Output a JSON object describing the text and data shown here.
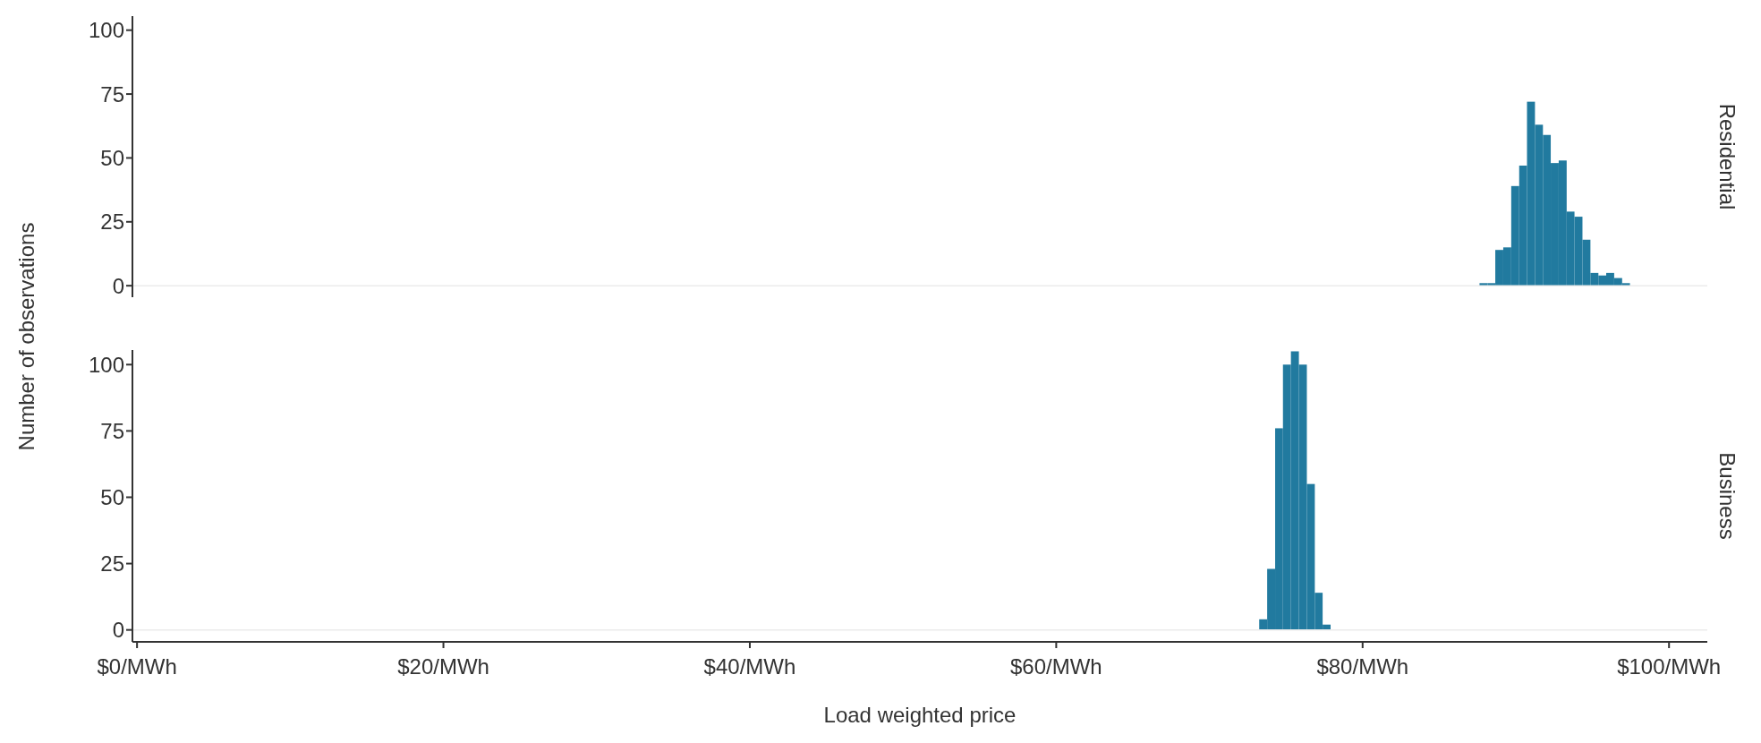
{
  "chart_data": [
    {
      "type": "histogram",
      "title": "Residential",
      "ylabel": "Number of observations",
      "color": "#217a9f",
      "bins": [
        87.63,
        88.15,
        88.66,
        89.18,
        89.7,
        90.22,
        90.73,
        91.25,
        91.77,
        92.28,
        92.8,
        93.32,
        93.83,
        94.35,
        94.87,
        95.39,
        95.9,
        96.42,
        96.94,
        97.45
      ],
      "values": [
        1,
        1,
        14,
        15,
        39,
        47,
        72,
        63,
        59,
        48,
        49,
        29,
        27,
        18,
        5,
        4,
        5,
        3,
        1
      ],
      "xlim": [
        -0.3,
        102.5
      ],
      "ylim": [
        -4.5,
        105.5
      ],
      "yticks": [
        0,
        25,
        50,
        75,
        100
      ],
      "tick_labels": "y",
      "grid": false,
      "ref_lines": [
        {
          "axis": "y",
          "value": 0,
          "color": "#ebebeb"
        }
      ]
    },
    {
      "type": "histogram",
      "title": "Business",
      "xlabel": "Load weighted price",
      "color": "#217a9f",
      "bins": [
        73.25,
        73.77,
        74.29,
        74.8,
        75.32,
        75.84,
        76.36,
        76.88,
        77.39,
        77.91
      ],
      "values": [
        4,
        23,
        76,
        100,
        105,
        100,
        55,
        14,
        2
      ],
      "xlim": [
        -0.3,
        102.5
      ],
      "xticks": [
        {
          "value": 0,
          "label": "$0/MWh"
        },
        {
          "value": 20,
          "label": "$20/MWh"
        },
        {
          "value": 40,
          "label": "$40/MWh"
        },
        {
          "value": 60,
          "label": "$60/MWh"
        },
        {
          "value": 80,
          "label": "$80/MWh"
        },
        {
          "value": 100,
          "label": "$100/MWh"
        }
      ],
      "ylim": [
        -4.5,
        105.5
      ],
      "yticks": [
        0,
        25,
        50,
        75,
        100
      ],
      "grid": false,
      "ref_lines": [
        {
          "axis": "y",
          "value": 0,
          "color": "#ebebeb"
        }
      ]
    }
  ]
}
